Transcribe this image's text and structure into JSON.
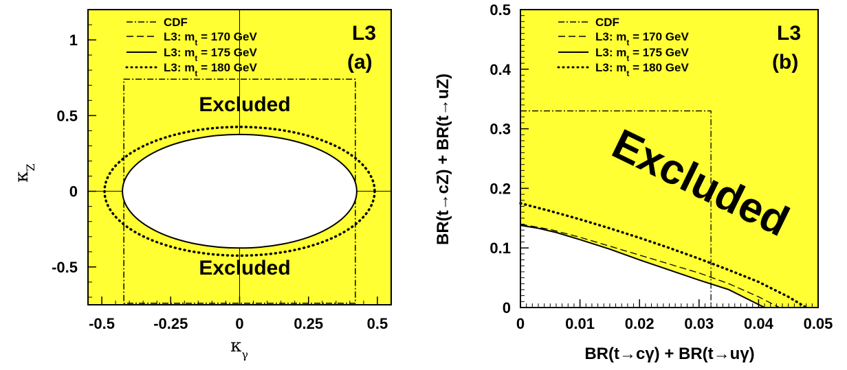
{
  "chart_data": [
    {
      "type": "line",
      "panel_label": "(a)",
      "experiment": "L3",
      "xlabel": "κγ",
      "ylabel": "κZ",
      "xlim": [
        -0.55,
        0.55
      ],
      "ylim": [
        -0.75,
        1.2
      ],
      "xticks": [
        "-0.5",
        "-0.25",
        "0",
        "0.25",
        "0.5"
      ],
      "yticks": [
        "-0.5",
        "0",
        "0.5",
        "1"
      ],
      "annotations": [
        "Excluded",
        "Excluded"
      ],
      "background": "#ffff33",
      "legend": [
        "CDF",
        "L3: mt = 170 GeV",
        "L3: mt = 175 GeV",
        "L3: mt = 180 GeV"
      ],
      "series": [
        {
          "name": "CDF",
          "style": "dashdot",
          "shape": "box",
          "x": [
            -0.42,
            0.42
          ],
          "y": [
            -0.74,
            0.74
          ]
        },
        {
          "name": "L3: mt = 170 GeV",
          "style": "dashed",
          "shape": "ellipse",
          "x_half_width": 0.425,
          "y_half_height": 0.375
        },
        {
          "name": "L3: mt = 175 GeV",
          "style": "solid",
          "shape": "ellipse",
          "x_half_width": 0.425,
          "y_half_height": 0.375
        },
        {
          "name": "L3: mt = 180 GeV",
          "style": "dotted",
          "shape": "ellipse",
          "x_half_width": 0.49,
          "y_half_height": 0.425
        }
      ]
    },
    {
      "type": "line",
      "panel_label": "(b)",
      "experiment": "L3",
      "xlabel": "BR(t→cγ) + BR(t→uγ)",
      "ylabel": "BR(t→cZ) + BR(t→uZ)",
      "xlim": [
        0,
        0.05
      ],
      "ylim": [
        0,
        0.5
      ],
      "xticks": [
        "0",
        "0.01",
        "0.02",
        "0.03",
        "0.04",
        "0.05"
      ],
      "yticks": [
        "0",
        "0.1",
        "0.2",
        "0.3",
        "0.4",
        "0.5"
      ],
      "annotations": [
        "Excluded"
      ],
      "background": "#ffff33",
      "legend": [
        "CDF",
        "L3: mt = 170 GeV",
        "L3: mt = 175 GeV",
        "L3: mt = 180 GeV"
      ],
      "series": [
        {
          "name": "CDF",
          "style": "dashdot",
          "x": [
            0,
            0.032,
            0.032
          ],
          "y": [
            0.33,
            0.33,
            0
          ]
        },
        {
          "name": "L3: mt = 170 GeV",
          "style": "dashed",
          "x": [
            0,
            0.005,
            0.01,
            0.015,
            0.02,
            0.025,
            0.03,
            0.035,
            0.04,
            0.0435
          ],
          "y": [
            0.14,
            0.131,
            0.118,
            0.103,
            0.088,
            0.073,
            0.058,
            0.04,
            0.018,
            0
          ]
        },
        {
          "name": "L3: mt = 175 GeV",
          "style": "solid",
          "x": [
            0,
            0.003,
            0.006,
            0.01,
            0.015,
            0.02,
            0.025,
            0.03,
            0.035,
            0.038,
            0.041
          ],
          "y": [
            0.138,
            0.133,
            0.126,
            0.114,
            0.098,
            0.08,
            0.063,
            0.046,
            0.03,
            0.015,
            0
          ]
        },
        {
          "name": "L3: mt = 180 GeV",
          "style": "dotted",
          "x": [
            0,
            0.005,
            0.01,
            0.015,
            0.02,
            0.025,
            0.03,
            0.035,
            0.04,
            0.045,
            0.048
          ],
          "y": [
            0.175,
            0.162,
            0.148,
            0.133,
            0.117,
            0.1,
            0.082,
            0.063,
            0.043,
            0.018,
            0
          ]
        }
      ]
    }
  ]
}
